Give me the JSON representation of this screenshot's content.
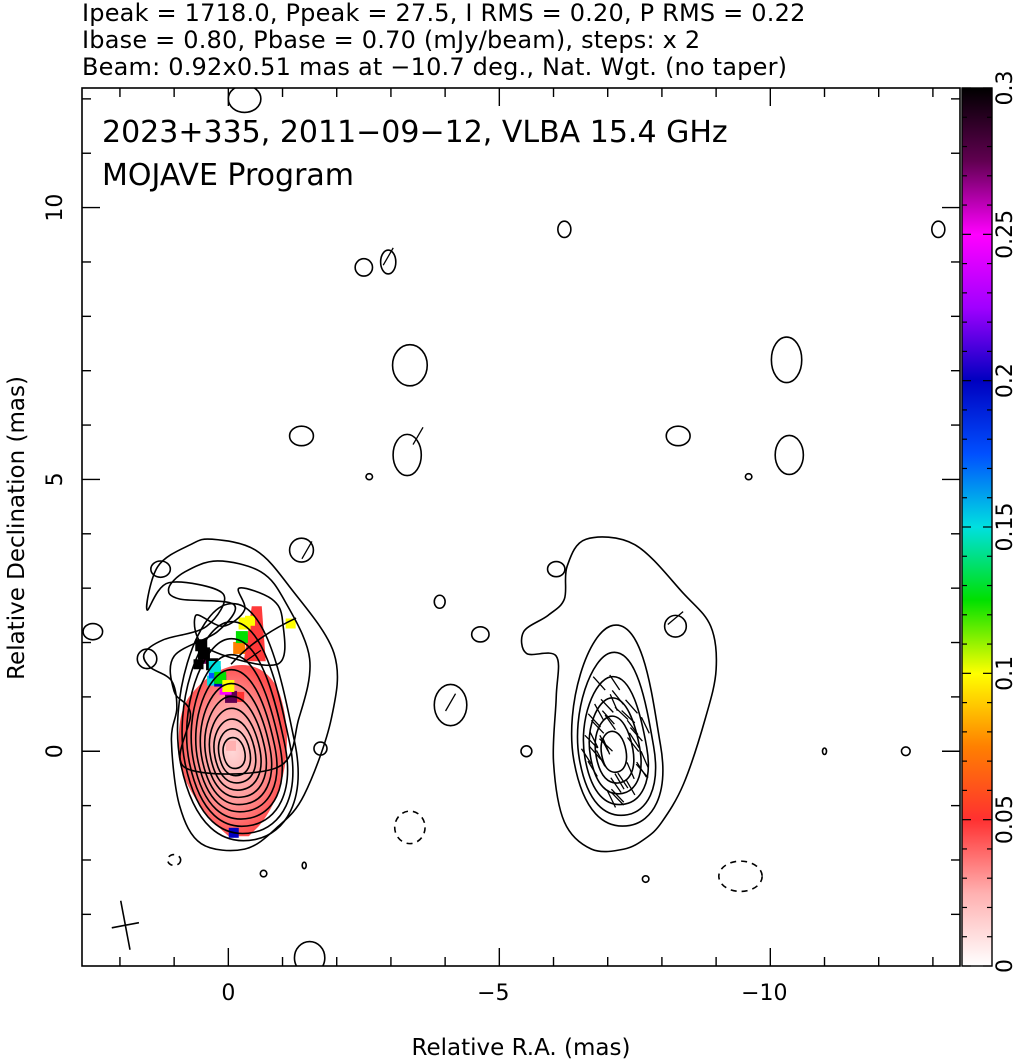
{
  "header": {
    "line1": "Ipeak = 1718.0, Ppeak = 27.5, I RMS = 0.20, P RMS = 0.22",
    "line2": "Ibase = 0.80, Pbase = 0.70 (mJy/beam), steps: x 2",
    "line3": "Beam: 0.92x0.51 mas at −10.7 deg., Nat. Wgt. (no taper)"
  },
  "chart_data": {
    "type": "contour",
    "overlay_title": "2023+335, 2011−09−12, VLBA 15.4 GHz",
    "overlay_subtitle": "MOJAVE Program",
    "xlabel": "Relative R.A. (mas)",
    "ylabel": "Relative Declination (mas)",
    "xlim": [
      2.7,
      -13.5
    ],
    "ylim": [
      -3.95,
      12.2
    ],
    "x_ticks": [
      0,
      -5,
      -10
    ],
    "x_tick_labels": [
      "0",
      "−5",
      "−10"
    ],
    "y_ticks": [
      0,
      5,
      10
    ],
    "y_tick_labels": [
      "0",
      "5",
      "10"
    ],
    "colorbar": {
      "range": [
        0,
        0.3
      ],
      "ticks": [
        0,
        0.05,
        0.1,
        0.15,
        0.2,
        0.25,
        0.3
      ],
      "tick_labels": [
        "0",
        "0.05",
        "0.1",
        "0.15",
        "0.2",
        "0.25",
        "0.3"
      ],
      "colors": [
        "#ffffff",
        "#ffb0b0",
        "#ff3030",
        "#ff8000",
        "#ffff00",
        "#00e000",
        "#00e0e0",
        "#0050ff",
        "#0000c0",
        "#a000ff",
        "#ff00ff",
        "#600050",
        "#000000"
      ]
    },
    "beam": {
      "major_mas": 0.92,
      "minor_mas": 0.51,
      "pa_deg": -10.7,
      "center": [
        1.9,
        -3.2
      ]
    },
    "left_panel": {
      "core": [
        -0.1,
        0.0
      ],
      "contour_levels": 11,
      "fractional_polarization_pixels": [
        {
          "x": -0.05,
          "y": 0.1,
          "v": 0.03
        },
        {
          "x": -0.2,
          "y": 1.0,
          "v": 0.06
        },
        {
          "x": 0.3,
          "y": 1.3,
          "v": 0.15
        },
        {
          "x": 0.45,
          "y": 1.7,
          "v": 0.27
        },
        {
          "x": 0.55,
          "y": 1.6,
          "v": 0.3
        },
        {
          "x": -0.4,
          "y": 2.4,
          "v": 0.1
        },
        {
          "x": -1.15,
          "y": 2.35,
          "v": 0.09
        },
        {
          "x": -0.1,
          "y": -1.5,
          "v": 0.2
        }
      ]
    },
    "right_panel": {
      "core": [
        -7.1,
        0.05
      ],
      "contour_levels": 6,
      "evpa_vectors": 38
    },
    "noise_contours": [
      {
        "x": 2.5,
        "y": 2.2,
        "rx": 0.18,
        "ry": 0.15
      },
      {
        "x": 1.5,
        "y": 1.7,
        "rx": 0.18,
        "ry": 0.18
      },
      {
        "x": 1.25,
        "y": 3.35,
        "rx": 0.18,
        "ry": 0.15
      },
      {
        "x": -1.35,
        "y": 3.7,
        "rx": 0.22,
        "ry": 0.22
      },
      {
        "x": -1.7,
        "y": 0.05,
        "rx": 0.12,
        "ry": 0.12
      },
      {
        "x": -2.5,
        "y": 8.9,
        "rx": 0.16,
        "ry": 0.16
      },
      {
        "x": -2.95,
        "y": 9.0,
        "rx": 0.14,
        "ry": 0.22
      },
      {
        "x": -3.35,
        "y": 7.1,
        "rx": 0.32,
        "ry": 0.38
      },
      {
        "x": -3.3,
        "y": 5.45,
        "rx": 0.26,
        "ry": 0.38
      },
      {
        "x": -1.35,
        "y": 5.8,
        "rx": 0.22,
        "ry": 0.18
      },
      {
        "x": -2.6,
        "y": 5.05,
        "rx": 0.06,
        "ry": 0.05
      },
      {
        "x": -3.9,
        "y": 2.75,
        "rx": 0.1,
        "ry": 0.12
      },
      {
        "x": -4.1,
        "y": 0.85,
        "rx": 0.3,
        "ry": 0.38
      },
      {
        "x": -4.65,
        "y": 2.15,
        "rx": 0.16,
        "ry": 0.14
      },
      {
        "x": -6.2,
        "y": 9.6,
        "rx": 0.12,
        "ry": 0.15
      },
      {
        "x": -6.05,
        "y": 3.35,
        "rx": 0.16,
        "ry": 0.14
      },
      {
        "x": -8.3,
        "y": 5.8,
        "rx": 0.22,
        "ry": 0.18
      },
      {
        "x": -10.3,
        "y": 7.2,
        "rx": 0.28,
        "ry": 0.42
      },
      {
        "x": -10.35,
        "y": 5.45,
        "rx": 0.26,
        "ry": 0.36
      },
      {
        "x": -9.6,
        "y": 5.05,
        "rx": 0.06,
        "ry": 0.05
      },
      {
        "x": -13.1,
        "y": 9.6,
        "rx": 0.12,
        "ry": 0.15
      },
      {
        "x": -5.5,
        "y": 0.0,
        "rx": 0.1,
        "ry": 0.1
      },
      {
        "x": -8.25,
        "y": 2.3,
        "rx": 0.2,
        "ry": 0.2
      },
      {
        "x": -12.5,
        "y": 0.0,
        "rx": 0.08,
        "ry": 0.08
      },
      {
        "x": -11.0,
        "y": 0.0,
        "rx": 0.03,
        "ry": 0.06
      },
      {
        "x": -0.65,
        "y": -2.25,
        "rx": 0.06,
        "ry": 0.06
      },
      {
        "x": -1.4,
        "y": -2.1,
        "rx": 0.03,
        "ry": 0.06
      },
      {
        "x": -7.7,
        "y": -2.35,
        "rx": 0.06,
        "ry": 0.06
      },
      {
        "x": -1.5,
        "y": -3.8,
        "rx": 0.28,
        "ry": 0.3
      },
      {
        "x": -0.3,
        "y": 12.0,
        "rx": 0.3,
        "ry": 0.25
      }
    ],
    "negative_contours": [
      {
        "x": -3.35,
        "y": -1.4,
        "rx": 0.28,
        "ry": 0.3
      },
      {
        "x": -9.45,
        "y": -2.3,
        "rx": 0.4,
        "ry": 0.28
      },
      {
        "x": 1.0,
        "y": -2.0,
        "rx": 0.12,
        "ry": 0.1
      }
    ]
  }
}
